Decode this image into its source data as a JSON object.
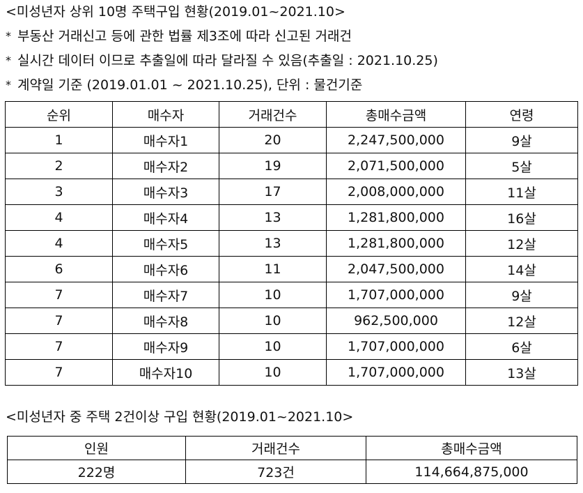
{
  "heading1": "<미성년자 상위 10명 주택구입 현황(2019.01~2021.10>",
  "notes": [
    {
      "bullet": "*",
      "text": "부동산 거래신고 등에 관한 법률 제3조에 따라 신고된 거래건"
    },
    {
      "bullet": "*",
      "text": "실시간 데이터 이므로 추출일에 따라 달라질 수 있음(추출일 : 2021.10.25)"
    },
    {
      "bullet": "*",
      "text": "계약일 기준 (2019.01.01 ~ 2021.10.25), 단위 : 물건기준"
    }
  ],
  "table1": {
    "headers": [
      "순위",
      "매수자",
      "거래건수",
      "총매수금액",
      "연령"
    ],
    "rows": [
      [
        "1",
        "매수자1",
        "20",
        "2,247,500,000",
        "9살"
      ],
      [
        "2",
        "매수자2",
        "19",
        "2,071,500,000",
        "5살"
      ],
      [
        "3",
        "매수자3",
        "17",
        "2,008,000,000",
        "11살"
      ],
      [
        "4",
        "매수자4",
        "13",
        "1,281,800,000",
        "16살"
      ],
      [
        "4",
        "매수자5",
        "13",
        "1,281,800,000",
        "12살"
      ],
      [
        "6",
        "매수자6",
        "11",
        "2,047,500,000",
        "14살"
      ],
      [
        "7",
        "매수자7",
        "10",
        "1,707,000,000",
        "9살"
      ],
      [
        "7",
        "매수자8",
        "10",
        "962,500,000",
        "12살"
      ],
      [
        "7",
        "매수자9",
        "10",
        "1,707,000,000",
        "6살"
      ],
      [
        "7",
        "매수자10",
        "10",
        "1,707,000,000",
        "13살"
      ]
    ]
  },
  "heading2": "<미성년자 중 주택 2건이상 구입 현황(2019.01~2021.10>",
  "table2": {
    "headers": [
      "인원",
      "거래건수",
      "총매수금액"
    ],
    "rows": [
      [
        "222명",
        "723건",
        "114,664,875,000"
      ]
    ]
  }
}
